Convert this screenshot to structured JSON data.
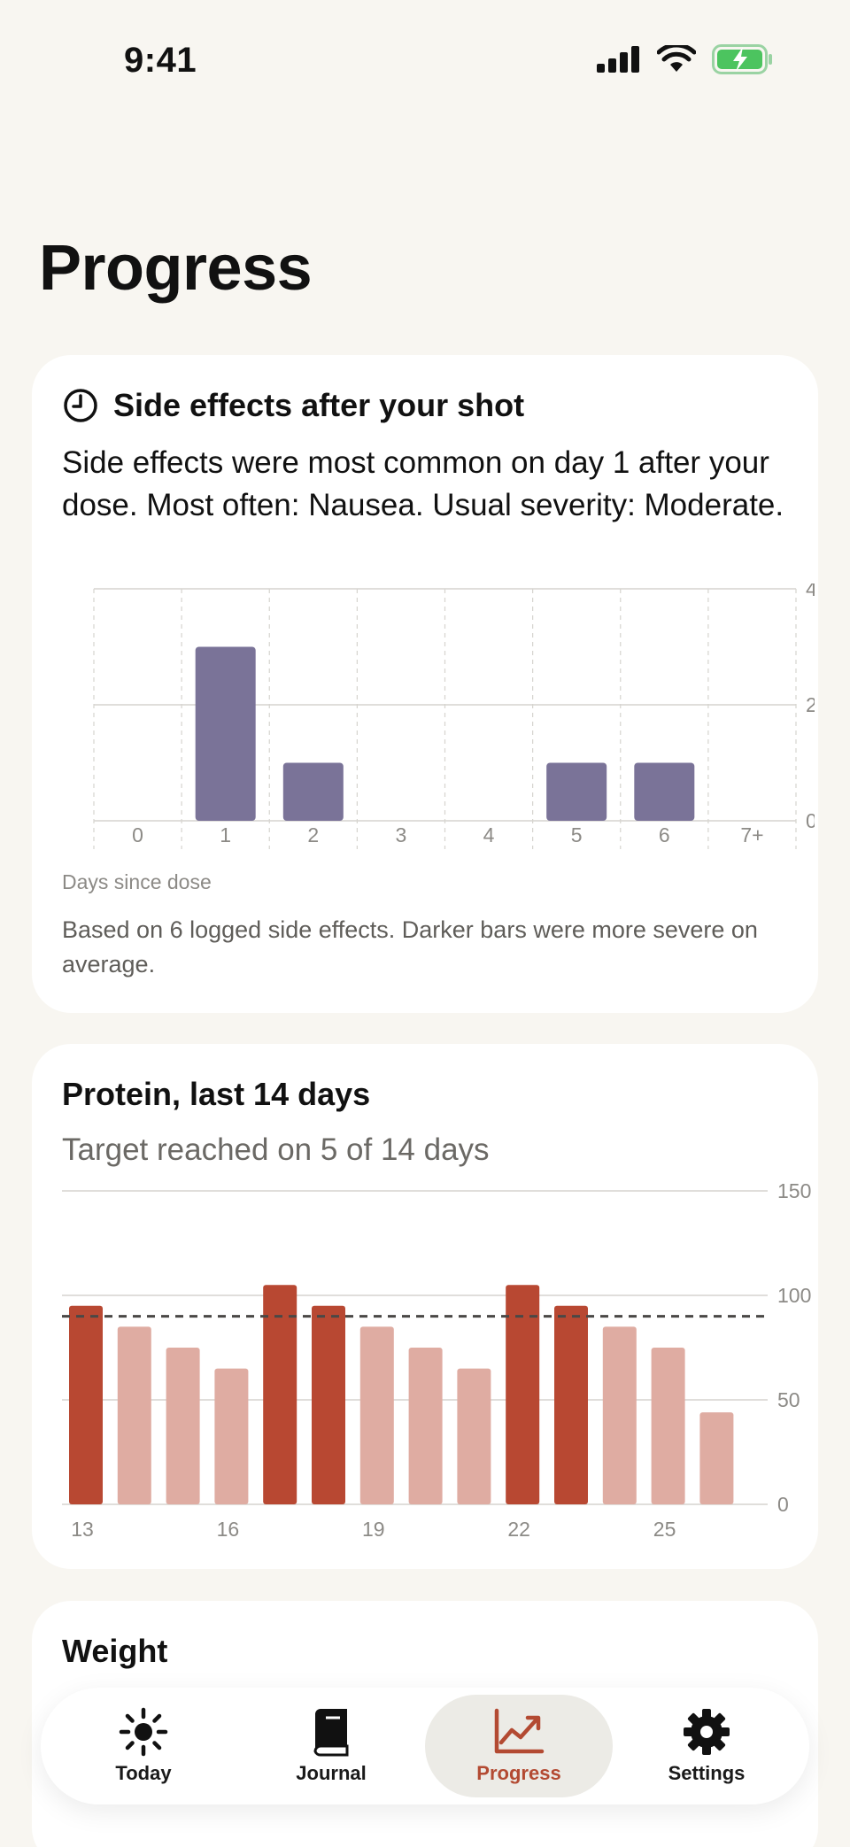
{
  "status": {
    "time": "9:41"
  },
  "page": {
    "title": "Progress"
  },
  "side_effects": {
    "title": "Side effects after your shot",
    "summary": "Side effects were most common on day 1 after your dose. Most often: Nausea. Usual severity: Moderate.",
    "x_axis_label": "Days since dose",
    "footnote": "Based on 6 logged side effects. Darker bars were more severe on average.",
    "bar_color": "#7a7398"
  },
  "protein": {
    "title": "Protein, last 14 days",
    "subtitle": "Target reached on 5 of 14 days",
    "reached_color": "#b84832",
    "missed_color": "#dfaca2"
  },
  "weight": {
    "title": "Weight"
  },
  "tabs": [
    {
      "label": "Today",
      "icon": "sun-icon"
    },
    {
      "label": "Journal",
      "icon": "book-icon"
    },
    {
      "label": "Progress",
      "icon": "chart-line-icon",
      "active": true
    },
    {
      "label": "Settings",
      "icon": "gear-icon"
    }
  ],
  "chart_data": [
    {
      "type": "bar",
      "xlabel": "Days since dose",
      "categories": [
        "0",
        "1",
        "2",
        "3",
        "4",
        "5",
        "6",
        "7+"
      ],
      "values": [
        0,
        3,
        1,
        0,
        0,
        1,
        1,
        0
      ],
      "ylim": [
        0,
        4
      ],
      "yticks": [
        "0",
        "2",
        "4"
      ],
      "grid": true
    },
    {
      "type": "bar",
      "x": [
        13,
        14,
        15,
        16,
        17,
        18,
        19,
        20,
        21,
        22,
        23,
        24,
        25,
        26
      ],
      "xticks": [
        "13",
        "16",
        "19",
        "22",
        "25"
      ],
      "values": [
        95,
        85,
        75,
        65,
        105,
        95,
        85,
        75,
        65,
        105,
        95,
        85,
        75,
        44
      ],
      "target": 90,
      "reached": [
        true,
        false,
        false,
        false,
        true,
        true,
        false,
        false,
        false,
        true,
        true,
        false,
        false,
        false
      ],
      "ylim": [
        0,
        150
      ],
      "yticks": [
        "0",
        "50",
        "100",
        "150"
      ],
      "grid": true
    }
  ]
}
